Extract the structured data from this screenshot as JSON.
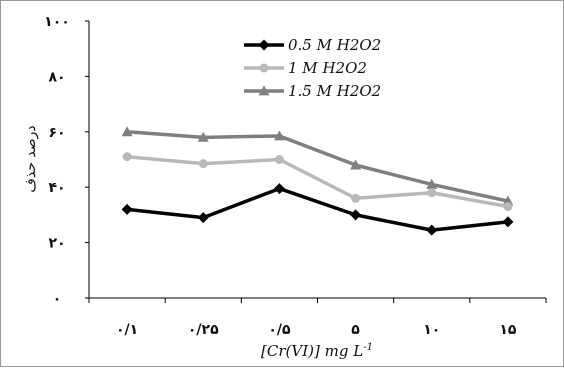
{
  "chart_data": {
    "type": "line",
    "categories": [
      "۰/۱",
      "۰/۲۵",
      "۰/۵",
      "۵",
      "۱۰",
      "۱۵"
    ],
    "series": [
      {
        "name": "0.5 M H2O2",
        "values": [
          32,
          29,
          39.5,
          30,
          24.5,
          27.5
        ],
        "color": "#000000",
        "marker": "diamond"
      },
      {
        "name": "1 M H2O2",
        "values": [
          51,
          48.5,
          50,
          36,
          38,
          33
        ],
        "color": "#b9b9b9",
        "marker": "circle"
      },
      {
        "name": "1.5 M H2O2",
        "values": [
          60,
          58,
          58.5,
          48,
          41,
          35
        ],
        "color": "#7f7f7f",
        "marker": "triangle"
      }
    ],
    "y_ticks": [
      {
        "value": 0,
        "label": "۰"
      },
      {
        "value": 20,
        "label": "۲۰"
      },
      {
        "value": 40,
        "label": "۴۰"
      },
      {
        "value": 60,
        "label": "۶۰"
      },
      {
        "value": 80,
        "label": "۸۰"
      },
      {
        "value": 100,
        "label": "۱۰۰"
      }
    ],
    "ylim": [
      0,
      100
    ],
    "xlabel": "[Cr(VI)] mg L",
    "xlabel_superscript": "-1",
    "ylabel": "درصد حذف",
    "legend_position": "top-center",
    "grid": false
  }
}
